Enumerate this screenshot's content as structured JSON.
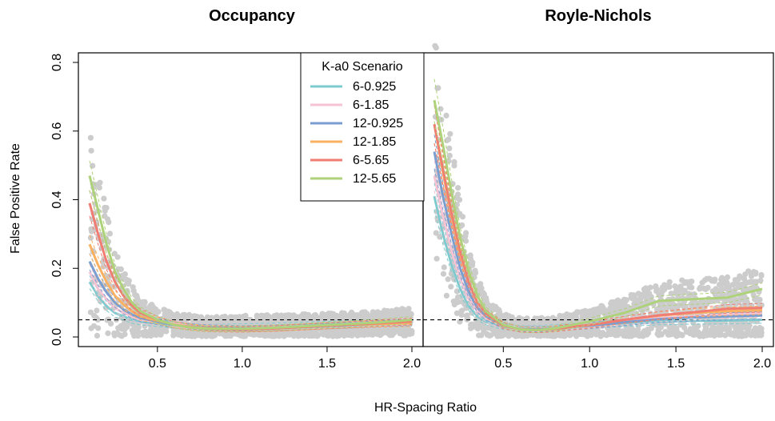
{
  "chart_data": [
    {
      "type": "line",
      "title": "Occupancy",
      "xlabel": "HR-Spacing Ratio",
      "ylabel": "False Positive Rate",
      "xlim": [
        0.1,
        2.0
      ],
      "ylim": [
        0.0,
        0.8
      ],
      "x_ticks": [
        "0.5",
        "1.0",
        "1.5",
        "2.0"
      ],
      "y_ticks": [
        "0.0",
        "0.2",
        "0.4",
        "0.6",
        "0.8"
      ],
      "reference_line_y": 0.05,
      "points_color": "#cccccc",
      "legend": {
        "title": "K-a0 Scenario",
        "position": "top-right"
      },
      "x": [
        0.1,
        0.15,
        0.2,
        0.25,
        0.3,
        0.35,
        0.4,
        0.5,
        0.6,
        0.7,
        0.8,
        1.0,
        1.2,
        1.4,
        1.6,
        1.8,
        2.0
      ],
      "series": [
        {
          "name": "6-0.925",
          "color": "#7ecbcf",
          "values": [
            0.16,
            0.12,
            0.09,
            0.07,
            0.06,
            0.05,
            0.045,
            0.04,
            0.035,
            0.03,
            0.028,
            0.03,
            0.032,
            0.035,
            0.038,
            0.04,
            0.042
          ]
        },
        {
          "name": "6-1.85",
          "color": "#f5c3d3",
          "values": [
            0.19,
            0.14,
            0.11,
            0.085,
            0.07,
            0.06,
            0.05,
            0.045,
            0.038,
            0.032,
            0.028,
            0.026,
            0.028,
            0.032,
            0.036,
            0.04,
            0.045
          ]
        },
        {
          "name": "12-0.925",
          "color": "#7b9ed0",
          "values": [
            0.22,
            0.17,
            0.13,
            0.1,
            0.08,
            0.065,
            0.055,
            0.045,
            0.035,
            0.03,
            0.027,
            0.025,
            0.027,
            0.03,
            0.034,
            0.038,
            0.042
          ]
        },
        {
          "name": "12-1.85",
          "color": "#fbb162",
          "values": [
            0.27,
            0.21,
            0.16,
            0.12,
            0.095,
            0.075,
            0.06,
            0.048,
            0.036,
            0.029,
            0.025,
            0.023,
            0.025,
            0.03,
            0.035,
            0.038,
            0.04
          ]
        },
        {
          "name": "6-5.65",
          "color": "#f07c72",
          "values": [
            0.39,
            0.3,
            0.22,
            0.16,
            0.12,
            0.09,
            0.07,
            0.05,
            0.035,
            0.027,
            0.023,
            0.022,
            0.025,
            0.03,
            0.035,
            0.04,
            0.045
          ]
        },
        {
          "name": "12-5.65",
          "color": "#aed27a",
          "values": [
            0.47,
            0.37,
            0.27,
            0.19,
            0.14,
            0.1,
            0.075,
            0.05,
            0.035,
            0.027,
            0.024,
            0.024,
            0.027,
            0.032,
            0.037,
            0.042,
            0.05
          ]
        }
      ]
    },
    {
      "type": "line",
      "title": "Royle-Nichols",
      "xlabel": "HR-Spacing Ratio",
      "ylabel": "False Positive Rate",
      "xlim": [
        0.1,
        2.0
      ],
      "ylim": [
        0.0,
        0.8
      ],
      "x_ticks": [
        "0.5",
        "1.0",
        "1.5",
        "2.0"
      ],
      "reference_line_y": 0.05,
      "points_color": "#cccccc",
      "x": [
        0.1,
        0.15,
        0.2,
        0.25,
        0.3,
        0.35,
        0.4,
        0.5,
        0.6,
        0.7,
        0.8,
        1.0,
        1.2,
        1.4,
        1.6,
        1.8,
        2.0
      ],
      "series": [
        {
          "name": "6-0.925",
          "color": "#7ecbcf",
          "values": [
            0.41,
            0.3,
            0.21,
            0.14,
            0.09,
            0.06,
            0.045,
            0.03,
            0.025,
            0.025,
            0.028,
            0.035,
            0.04,
            0.045,
            0.047,
            0.048,
            0.05
          ]
        },
        {
          "name": "6-1.85",
          "color": "#f5c3d3",
          "values": [
            0.47,
            0.35,
            0.25,
            0.17,
            0.11,
            0.075,
            0.055,
            0.032,
            0.024,
            0.023,
            0.026,
            0.035,
            0.045,
            0.055,
            0.06,
            0.065,
            0.07
          ]
        },
        {
          "name": "12-0.925",
          "color": "#7b9ed0",
          "values": [
            0.54,
            0.41,
            0.3,
            0.2,
            0.13,
            0.085,
            0.06,
            0.033,
            0.023,
            0.022,
            0.025,
            0.033,
            0.043,
            0.052,
            0.057,
            0.06,
            0.063
          ]
        },
        {
          "name": "12-1.85",
          "color": "#fbb162",
          "values": [
            0.62,
            0.48,
            0.35,
            0.24,
            0.16,
            0.1,
            0.068,
            0.034,
            0.022,
            0.02,
            0.023,
            0.035,
            0.05,
            0.062,
            0.07,
            0.075,
            0.078
          ]
        },
        {
          "name": "6-5.65",
          "color": "#f07c72",
          "values": [
            0.62,
            0.49,
            0.36,
            0.25,
            0.16,
            0.1,
            0.068,
            0.033,
            0.022,
            0.02,
            0.024,
            0.035,
            0.05,
            0.063,
            0.072,
            0.082,
            0.085
          ]
        },
        {
          "name": "12-5.65",
          "color": "#aed27a",
          "values": [
            0.69,
            0.56,
            0.42,
            0.29,
            0.19,
            0.12,
            0.075,
            0.035,
            0.022,
            0.02,
            0.025,
            0.045,
            0.07,
            0.105,
            0.11,
            0.115,
            0.14
          ]
        }
      ]
    }
  ]
}
